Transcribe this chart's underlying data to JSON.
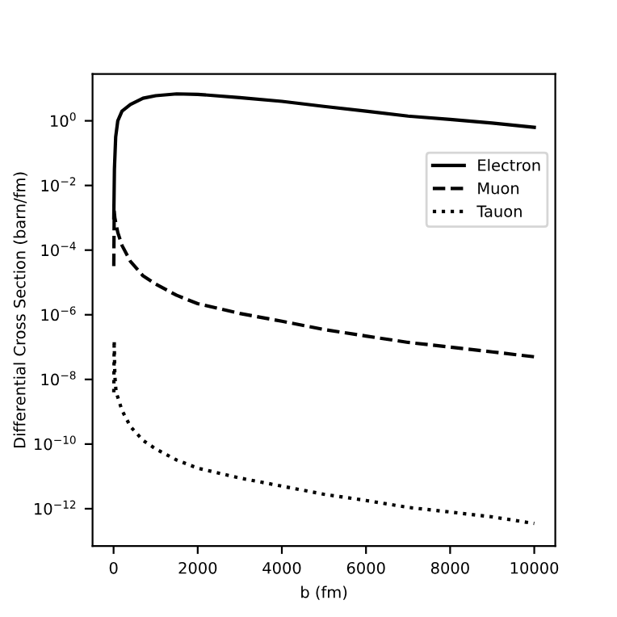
{
  "chart_data": {
    "type": "line",
    "xlabel": "b (fm)",
    "ylabel": "Differential Cross Section (barn/fm)",
    "log": "y",
    "xlim": [
      -500,
      10500
    ],
    "xticks": [
      0,
      2000,
      4000,
      6000,
      8000,
      10000
    ],
    "ylim": [
      7e-14,
      28
    ],
    "yticks": [
      {
        "value": 1,
        "label": "10$^{0}$"
      },
      {
        "value": 0.01,
        "label": "10$^{−2}$"
      },
      {
        "value": 0.0001,
        "label": "10$^{−4}$"
      },
      {
        "value": 1e-06,
        "label": "10$^{−6}$"
      },
      {
        "value": 1e-08,
        "label": "10$^{−8}$"
      },
      {
        "value": 1e-10,
        "label": "10$^{−10}$"
      },
      {
        "value": 1e-12,
        "label": "10$^{−12}$"
      }
    ],
    "legend": "upper right",
    "grid": false,
    "marker": "none",
    "series": [
      {
        "name": "Electron",
        "color": "#000000",
        "line_style": "solid",
        "x": [
          5,
          20,
          50,
          100,
          200,
          400,
          700,
          1000,
          1500,
          2000,
          3000,
          4000,
          5000,
          6000,
          7000,
          8000,
          9000,
          10000
        ],
        "values": [
          0.001,
          0.032,
          0.32,
          1,
          2.0,
          3.2,
          5.0,
          6.0,
          6.8,
          6.6,
          5.2,
          4.0,
          2.8,
          2.0,
          1.4,
          1.1,
          0.85,
          0.63
        ]
      },
      {
        "name": "Muon",
        "color": "#000000",
        "line_style": "dashed",
        "x": [
          5,
          15,
          30,
          60,
          100,
          200,
          400,
          700,
          1000,
          1500,
          2000,
          3000,
          4000,
          5000,
          6000,
          7000,
          8000,
          9000,
          10000
        ],
        "values": [
          3.2e-05,
          0.0016,
          0.001,
          0.00063,
          0.00035,
          0.00014,
          4.5e-05,
          1.6e-05,
          8.9e-06,
          4e-06,
          2.2e-06,
          1.1e-06,
          6.3e-07,
          3.5e-07,
          2.2e-07,
          1.4e-07,
          1e-07,
          7.1e-08,
          5e-08
        ]
      },
      {
        "name": "Tauon",
        "color": "#000000",
        "line_style": "dotted",
        "x": [
          5,
          15,
          30,
          60,
          100,
          200,
          400,
          700,
          1000,
          1500,
          2000,
          3000,
          4000,
          5000,
          6000,
          7000,
          8000,
          9000,
          10000
        ],
        "values": [
          4e-09,
          1.6e-07,
          1.3e-08,
          4e-09,
          2.8e-09,
          1.1e-09,
          3.5e-10,
          1.3e-10,
          7.1e-11,
          3.2e-11,
          1.8e-11,
          8.9e-12,
          5e-12,
          2.8e-12,
          1.8e-12,
          1.1e-12,
          7.9e-13,
          5.6e-13,
          3.5e-13
        ]
      }
    ]
  }
}
